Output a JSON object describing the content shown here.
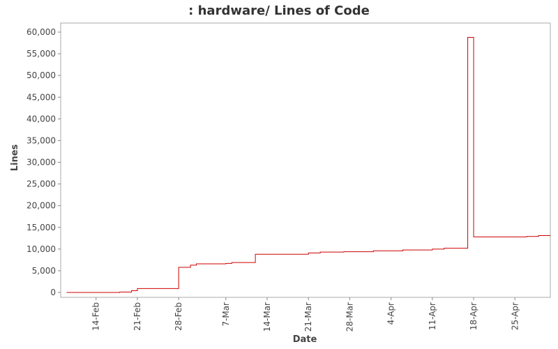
{
  "chart_data": {
    "type": "line",
    "title": ": hardware/ Lines of Code",
    "xlabel": "Date",
    "ylabel": "Lines",
    "ylim": [
      0,
      62000
    ],
    "yticks": [
      0,
      5000,
      10000,
      15000,
      20000,
      25000,
      30000,
      35000,
      40000,
      45000,
      50000,
      55000,
      60000
    ],
    "ytick_labels": [
      "0",
      "5,000",
      "10,000",
      "15,000",
      "20,000",
      "25,000",
      "30,000",
      "35,000",
      "40,000",
      "45,000",
      "50,000",
      "55,000",
      "60,000"
    ],
    "xlim": [
      "Feb 8",
      "May 1"
    ],
    "xticks": [
      "Feb 14",
      "Feb 21",
      "Feb 28",
      "Mar 7",
      "Mar 14",
      "Mar 21",
      "Mar 28",
      "Apr 4",
      "Apr 11",
      "Apr 18",
      "Apr 25"
    ],
    "xtick_labels": [
      "14-Feb",
      "21-Feb",
      "28-Feb",
      "7-Mar",
      "14-Mar",
      "21-Mar",
      "28-Mar",
      "4-Apr",
      "11-Apr",
      "18-Apr",
      "25-Apr"
    ],
    "step": true,
    "grid": false,
    "legend": "none",
    "series": [
      {
        "color": "#cc0000",
        "points": [
          [
            "Feb 9",
            0
          ],
          [
            "Feb 18",
            100
          ],
          [
            "Feb 20",
            400
          ],
          [
            "Feb 21",
            900
          ],
          [
            "Feb 28",
            5800
          ],
          [
            "Mar 1",
            6300
          ],
          [
            "Mar 2",
            6600
          ],
          [
            "Mar 7",
            6700
          ],
          [
            "Mar 8",
            6900
          ],
          [
            "Mar 12",
            8800
          ],
          [
            "Mar 21",
            9100
          ],
          [
            "Mar 23",
            9300
          ],
          [
            "Mar 27",
            9400
          ],
          [
            "Apr 1",
            9600
          ],
          [
            "Apr 6",
            9800
          ],
          [
            "Apr 11",
            10000
          ],
          [
            "Apr 13",
            10200
          ],
          [
            "Apr 17",
            58800
          ],
          [
            "Apr 18",
            12800
          ],
          [
            "Apr 27",
            12900
          ],
          [
            "Apr 29",
            13100
          ],
          [
            "May 1",
            13100
          ]
        ]
      }
    ]
  }
}
